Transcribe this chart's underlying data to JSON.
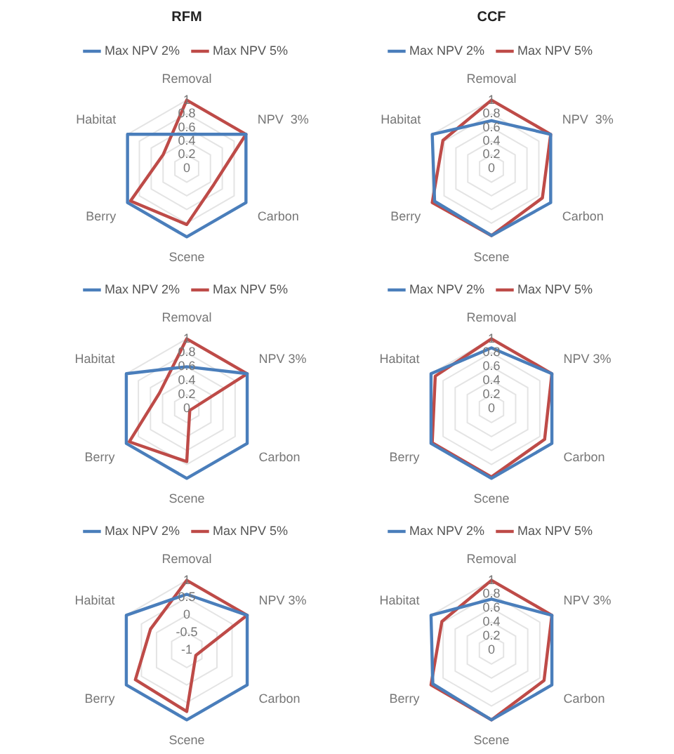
{
  "chart_data": [
    {
      "type": "radar",
      "title": "RFM",
      "categories": [
        "Removal",
        "NPV  3%",
        "Carbon",
        "Scene",
        "Berry",
        "Habitat"
      ],
      "ylim": [
        0,
        1
      ],
      "yticks": [
        0,
        0.2,
        0.4,
        0.6,
        0.8,
        1
      ],
      "grid": true,
      "legend": "top",
      "marker": "none",
      "series": [
        {
          "name": "Max NPV 2%",
          "color": "#4a7ebb",
          "values": [
            0.5,
            1,
            1,
            1,
            1,
            1
          ]
        },
        {
          "name": "Max NPV 5%",
          "color": "#be4b48",
          "values": [
            1,
            1,
            0.46,
            0.82,
            0.95,
            0.4
          ]
        }
      ]
    },
    {
      "type": "radar",
      "title": "CCF",
      "categories": [
        "Removal",
        "NPV  3%",
        "Carbon",
        "Scene",
        "Berry",
        "Habitat"
      ],
      "ylim": [
        0,
        1
      ],
      "yticks": [
        0,
        0.2,
        0.4,
        0.6,
        0.8,
        1
      ],
      "grid": true,
      "legend": "top",
      "marker": "none",
      "series": [
        {
          "name": "Max NPV 2%",
          "color": "#4a7ebb",
          "values": [
            0.7,
            1,
            1,
            0.98,
            0.96,
            1
          ]
        },
        {
          "name": "Max NPV 5%",
          "color": "#be4b48",
          "values": [
            1,
            1,
            0.86,
            0.98,
            1,
            0.82
          ]
        }
      ]
    },
    {
      "type": "radar",
      "categories": [
        "Removal",
        "NPV 3%",
        "Carbon",
        "Scene",
        "Berry",
        "Habitat"
      ],
      "ylim": [
        0,
        1
      ],
      "yticks": [
        0,
        0.2,
        0.4,
        0.6,
        0.8,
        1
      ],
      "grid": true,
      "legend": "top",
      "marker": "none",
      "series": [
        {
          "name": "Max NPV 2%",
          "color": "#4a7ebb",
          "values": [
            0.6,
            1,
            1,
            1,
            1,
            1
          ]
        },
        {
          "name": "Max NPV 5%",
          "color": "#be4b48",
          "values": [
            1,
            1,
            0.05,
            0.76,
            0.95,
            0.45
          ]
        }
      ]
    },
    {
      "type": "radar",
      "categories": [
        "Removal",
        "NPV 3%",
        "Carbon",
        "Scene",
        "Berry",
        "Habitat"
      ],
      "ylim": [
        0,
        1
      ],
      "yticks": [
        0,
        0.2,
        0.4,
        0.6,
        0.8,
        1
      ],
      "grid": true,
      "legend": "top",
      "marker": "none",
      "series": [
        {
          "name": "Max NPV 2%",
          "color": "#4a7ebb",
          "values": [
            0.87,
            1,
            1,
            1,
            1,
            1
          ]
        },
        {
          "name": "Max NPV 5%",
          "color": "#be4b48",
          "values": [
            1,
            1,
            0.88,
            0.98,
            0.98,
            0.93
          ]
        }
      ]
    },
    {
      "type": "radar",
      "categories": [
        "Removal",
        "NPV 3%",
        "Carbon",
        "Scene",
        "Berry",
        "Habitat"
      ],
      "ylim": [
        -1,
        1
      ],
      "yticks": [
        -1,
        -0.5,
        0,
        0.5,
        1
      ],
      "grid": true,
      "legend": "top",
      "marker": "none",
      "series": [
        {
          "name": "Max NPV 2%",
          "color": "#4a7ebb",
          "values": [
            0.6,
            1,
            1,
            1,
            1,
            1
          ]
        },
        {
          "name": "Max NPV 5%",
          "color": "#be4b48",
          "values": [
            1,
            1,
            -0.7,
            0.76,
            0.7,
            0.2
          ]
        }
      ]
    },
    {
      "type": "radar",
      "categories": [
        "Removal",
        "NPV 3%",
        "Carbon",
        "Scene",
        "Berry",
        "Habitat"
      ],
      "ylim": [
        0,
        1
      ],
      "yticks": [
        0,
        0.2,
        0.4,
        0.6,
        0.8,
        1
      ],
      "grid": true,
      "legend": "top",
      "marker": "none",
      "series": [
        {
          "name": "Max NPV 2%",
          "color": "#4a7ebb",
          "values": [
            0.73,
            1,
            1,
            1,
            0.97,
            1
          ]
        },
        {
          "name": "Max NPV 5%",
          "color": "#be4b48",
          "values": [
            1,
            1,
            0.87,
            1,
            1,
            0.82
          ]
        }
      ]
    }
  ]
}
